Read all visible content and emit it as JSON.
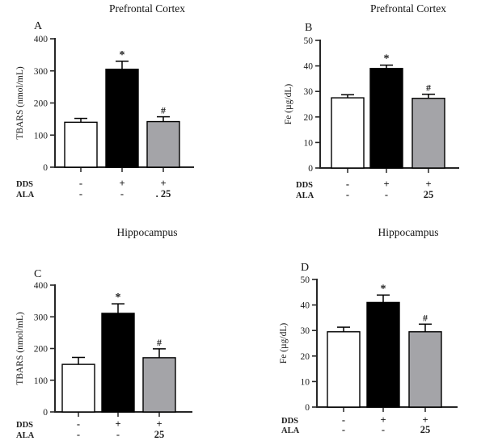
{
  "figure": {
    "background": "#ffffff"
  },
  "colors": {
    "axis": "#262626",
    "text": "#1b1b1b",
    "bar_white": "#ffffff",
    "bar_black": "#000000",
    "bar_gray": "#a4a4a8",
    "bar_border": "#000000"
  },
  "chart_data": [
    {
      "type": "bar",
      "panel_label": "A",
      "title": "Prefrontal Cortex",
      "ylabel": "TBARS (nmol/mL)",
      "ylim": [
        0,
        400
      ],
      "yticks": [
        0,
        100,
        200,
        300,
        400
      ],
      "x_rows": [
        {
          "label": "DDS",
          "values": [
            "-",
            "+",
            "+"
          ]
        },
        {
          "label": "ALA",
          "values": [
            "-",
            "-",
            ". 25"
          ]
        }
      ],
      "bars": [
        {
          "group": "control",
          "value": 140,
          "error": 12,
          "color": "white",
          "annotation": ""
        },
        {
          "group": "DDS",
          "value": 305,
          "error": 25,
          "color": "black",
          "annotation": "*"
        },
        {
          "group": "DDS+ALA25",
          "value": 142,
          "error": 15,
          "color": "gray",
          "annotation": "#"
        }
      ]
    },
    {
      "type": "bar",
      "panel_label": "B",
      "title": "Prefrontal Cortex",
      "ylabel": "Fe (µg/dL)",
      "ylim": [
        0,
        50
      ],
      "yticks": [
        0,
        10,
        20,
        30,
        40,
        50
      ],
      "x_rows": [
        {
          "label": "DDS",
          "values": [
            "-",
            "+",
            "+"
          ]
        },
        {
          "label": "ALA",
          "values": [
            "-",
            "-",
            "25"
          ]
        }
      ],
      "bars": [
        {
          "group": "control",
          "value": 27.5,
          "error": 1.2,
          "color": "white",
          "annotation": ""
        },
        {
          "group": "DDS",
          "value": 39.0,
          "error": 1.3,
          "color": "black",
          "annotation": "*"
        },
        {
          "group": "DDS+ALA25",
          "value": 27.3,
          "error": 1.6,
          "color": "gray",
          "annotation": "#"
        }
      ]
    },
    {
      "type": "bar",
      "panel_label": "C",
      "title": "Hippocampus",
      "ylabel": "TBARS (nmol/mL)",
      "ylim": [
        0,
        400
      ],
      "yticks": [
        0,
        100,
        200,
        300,
        400
      ],
      "x_rows": [
        {
          "label": "DDS",
          "values": [
            "-",
            "+",
            "+"
          ]
        },
        {
          "label": "ALA",
          "values": [
            "-",
            "-",
            "25"
          ]
        }
      ],
      "bars": [
        {
          "group": "control",
          "value": 150,
          "error": 22,
          "color": "white",
          "annotation": ""
        },
        {
          "group": "DDS",
          "value": 311,
          "error": 30,
          "color": "black",
          "annotation": "*"
        },
        {
          "group": "DDS+ALA25",
          "value": 171,
          "error": 28,
          "color": "gray",
          "annotation": "#"
        }
      ]
    },
    {
      "type": "bar",
      "panel_label": "D",
      "title": "Hippocampus",
      "ylabel": "Fe (µg/dL)",
      "ylim": [
        0,
        50
      ],
      "yticks": [
        0,
        10,
        20,
        30,
        40,
        50
      ],
      "x_rows": [
        {
          "label": "DDS",
          "values": [
            "-",
            "+",
            "+"
          ]
        },
        {
          "label": "ALA",
          "values": [
            "-",
            "-",
            "25"
          ]
        }
      ],
      "bars": [
        {
          "group": "control",
          "value": 29.5,
          "error": 1.8,
          "color": "white",
          "annotation": ""
        },
        {
          "group": "DDS",
          "value": 41.0,
          "error": 2.9,
          "color": "black",
          "annotation": "*"
        },
        {
          "group": "DDS+ALA25",
          "value": 29.5,
          "error": 3.0,
          "color": "gray",
          "annotation": "#"
        }
      ]
    }
  ]
}
